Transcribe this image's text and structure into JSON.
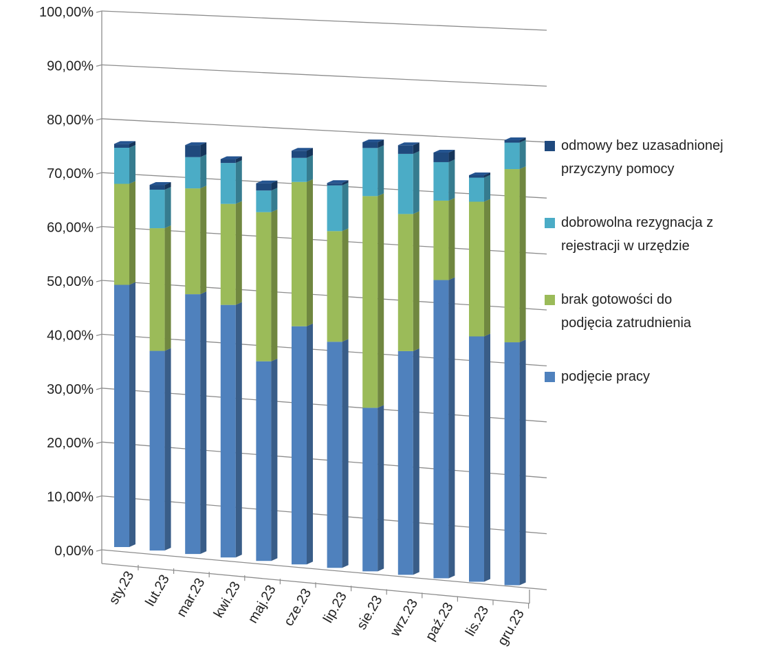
{
  "chart_data": {
    "type": "bar",
    "stacked": true,
    "style": "3d-column",
    "categories": [
      "sty.23",
      "lut.23",
      "mar.23",
      "kwi.23",
      "maj.23",
      "cze.23",
      "lip.23",
      "sie.23",
      "wrz.23",
      "paź.23",
      "lis.23",
      "gru.23"
    ],
    "series": [
      {
        "name": "podjęcie pracy",
        "color": "#4F81BD",
        "values": [
          0.545,
          0.415,
          0.54,
          0.525,
          0.415,
          0.495,
          0.47,
          0.34,
          0.465,
          0.62,
          0.51,
          0.505
        ]
      },
      {
        "name": "brak gotowości do podjęcia zatrudnienia",
        "color": "#9BBB59",
        "values": [
          0.21,
          0.255,
          0.22,
          0.21,
          0.31,
          0.3,
          0.23,
          0.44,
          0.285,
          0.165,
          0.28,
          0.36
        ]
      },
      {
        "name": "dobrowolna rezygnacja z rejestracji w urzędzie",
        "color": "#4BACC6",
        "values": [
          0.075,
          0.08,
          0.065,
          0.085,
          0.045,
          0.05,
          0.095,
          0.1,
          0.125,
          0.08,
          0.05,
          0.055
        ]
      },
      {
        "name": "odmowy bez uzasadnionej przyczyny pomocy",
        "color": "#1F497D",
        "values": [
          0.008,
          0.01,
          0.025,
          0.008,
          0.015,
          0.015,
          0.005,
          0.012,
          0.018,
          0.02,
          0.005,
          0.005
        ]
      }
    ],
    "yticks": [
      "0,00%",
      "10,00%",
      "20,00%",
      "30,00%",
      "40,00%",
      "50,00%",
      "60,00%",
      "70,00%",
      "80,00%",
      "90,00%",
      "100,00%"
    ],
    "ylim": [
      0,
      1
    ],
    "grid": true,
    "legend_position": "right"
  }
}
